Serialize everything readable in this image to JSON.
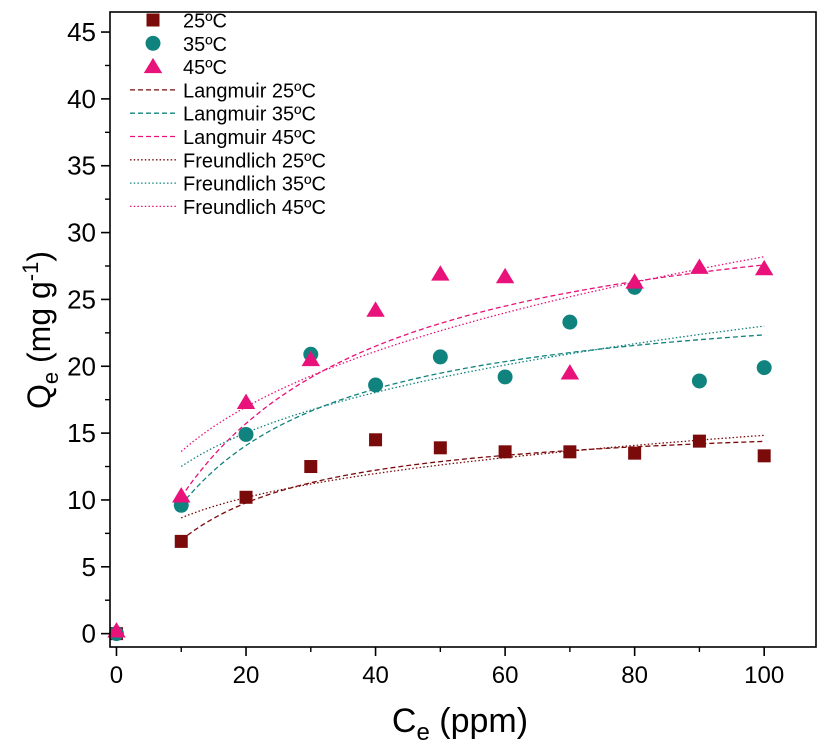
{
  "chart_data": {
    "type": "scatter",
    "xlabel": {
      "main": "C",
      "sub": "e",
      "rest": " (ppm)"
    },
    "ylabel": {
      "main": "Q",
      "sub": "e",
      "rest": " (mg g",
      "sup": "-1",
      "close": ")"
    },
    "xlim": [
      -1,
      108
    ],
    "ylim": [
      -1,
      46.5
    ],
    "xticks": [
      0,
      20,
      40,
      60,
      80,
      100
    ],
    "yticks": [
      0,
      5,
      10,
      15,
      20,
      25,
      30,
      35,
      40,
      45
    ],
    "grid": false,
    "legend_position": "top-left",
    "series": [
      {
        "name": "25ºC",
        "marker": "square",
        "color": "#7b0a0a",
        "x": [
          0,
          10,
          20,
          30,
          40,
          50,
          60,
          70,
          80,
          90,
          100
        ],
        "y": [
          0,
          6.9,
          10.2,
          12.5,
          14.5,
          13.9,
          13.6,
          13.6,
          13.5,
          14.4,
          13.3
        ]
      },
      {
        "name": "35ºC",
        "marker": "circle",
        "color": "#11837f",
        "x": [
          0,
          10,
          20,
          30,
          40,
          50,
          60,
          70,
          80,
          90,
          100
        ],
        "y": [
          0,
          9.6,
          14.9,
          20.9,
          18.6,
          20.7,
          19.2,
          23.3,
          25.9,
          18.9,
          19.9
        ]
      },
      {
        "name": "45ºC",
        "marker": "triangle",
        "color": "#e8127a",
        "x": [
          0,
          10,
          20,
          30,
          40,
          50,
          60,
          70,
          80,
          90,
          100
        ],
        "y": [
          0.2,
          10.3,
          17.3,
          20.5,
          24.2,
          26.9,
          26.7,
          19.5,
          26.3,
          27.4,
          27.3
        ]
      }
    ],
    "fits": [
      {
        "name": "Langmuir 25ºC",
        "style": "dashed",
        "color": "#7b0a0a",
        "model": "langmuir",
        "qm": 16.3,
        "k": 0.075,
        "x_from": 10,
        "x_to": 100
      },
      {
        "name": "Langmuir 35ºC",
        "style": "dashed",
        "color": "#11837f",
        "model": "langmuir",
        "qm": 26.2,
        "k": 0.058,
        "x_from": 10,
        "x_to": 100
      },
      {
        "name": "Langmuir 45ºC",
        "style": "dashed",
        "color": "#e8127a",
        "model": "langmuir",
        "qm": 34.0,
        "k": 0.043,
        "x_from": 10,
        "x_to": 100
      },
      {
        "name": "Freundlich 25ºC",
        "style": "dotted",
        "color": "#7b0a0a",
        "model": "freundlich",
        "kf": 5.05,
        "n": 0.234,
        "x_from": 10,
        "x_to": 100
      },
      {
        "name": "Freundlich 35ºC",
        "style": "dotted",
        "color": "#11837f",
        "model": "freundlich",
        "kf": 6.79,
        "n": 0.265,
        "x_from": 10,
        "x_to": 100
      },
      {
        "name": "Freundlich 45ºC",
        "style": "dotted",
        "color": "#e8127a",
        "model": "freundlich",
        "kf": 6.58,
        "n": 0.316,
        "x_from": 10,
        "x_to": 100
      }
    ]
  }
}
